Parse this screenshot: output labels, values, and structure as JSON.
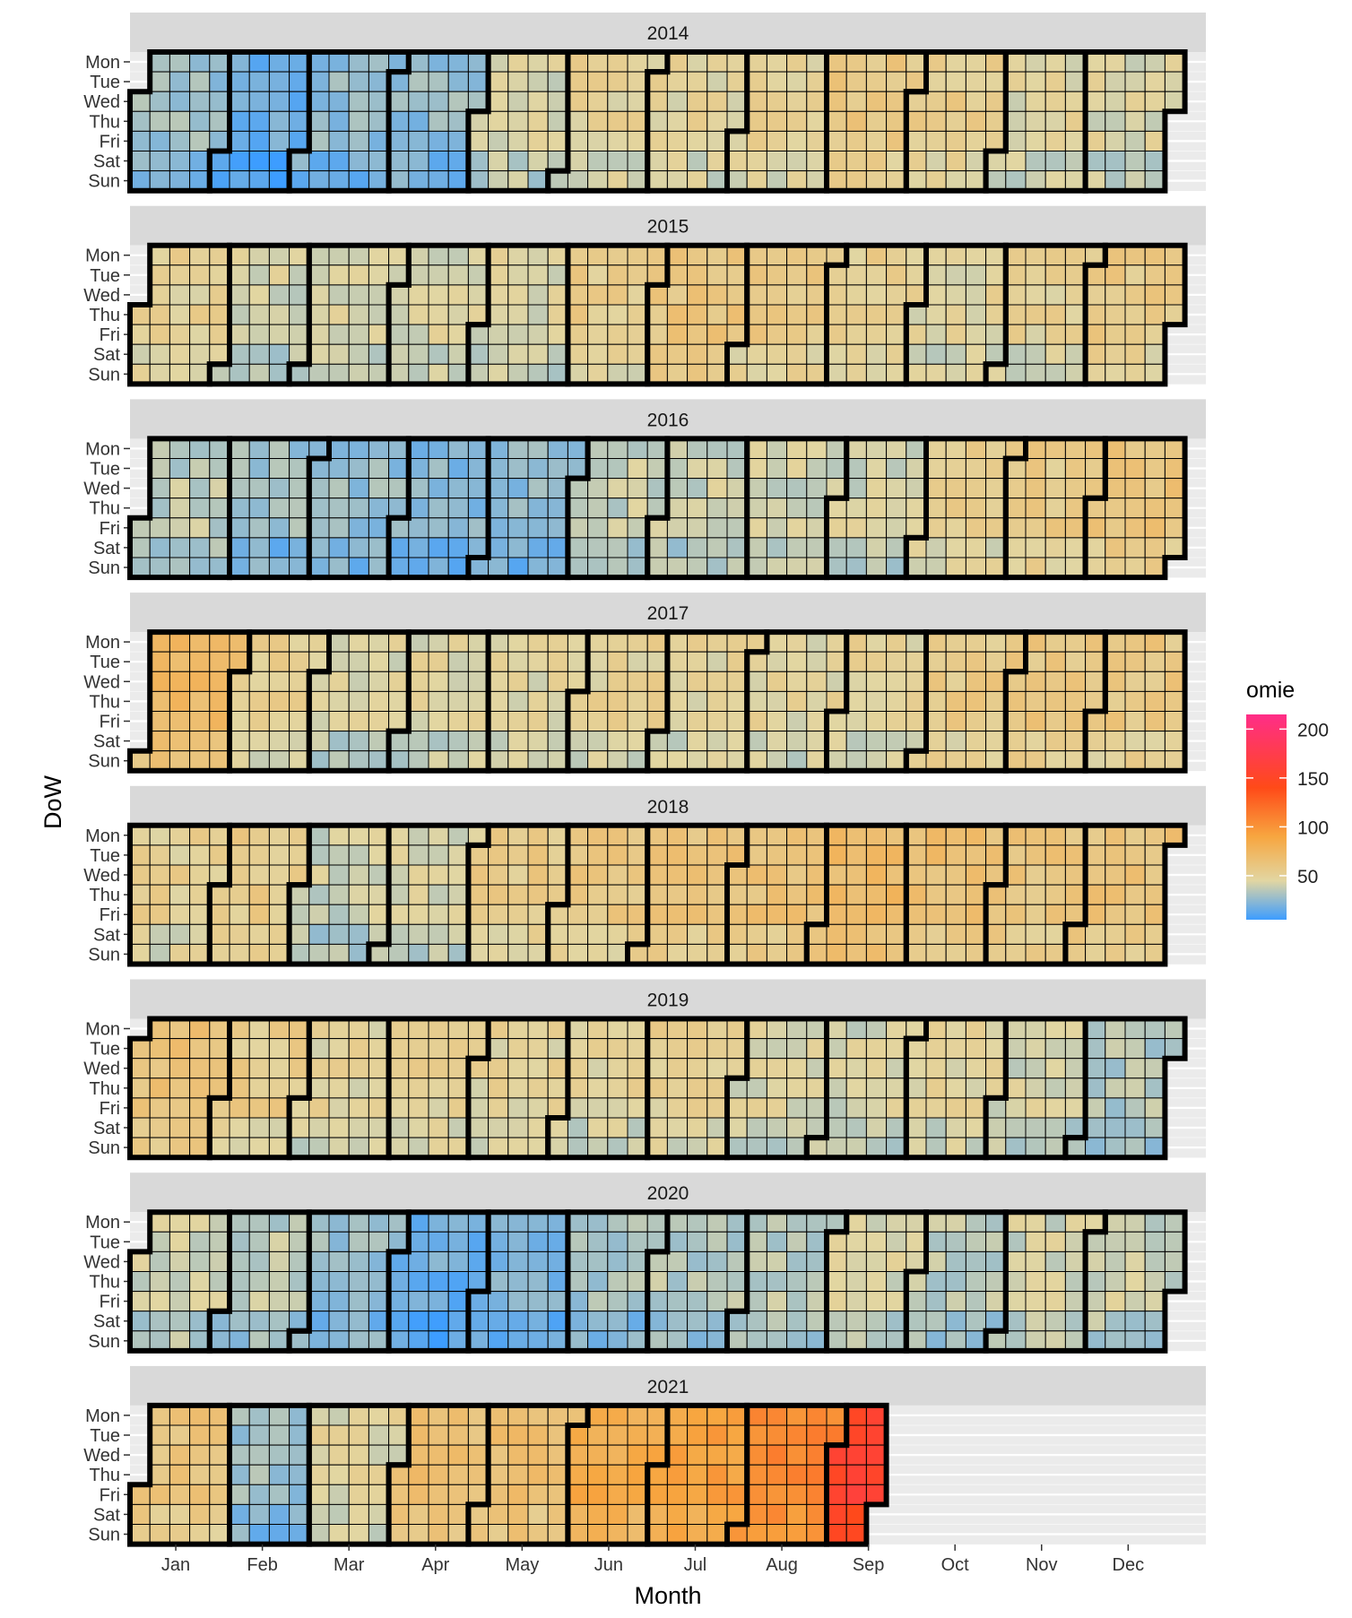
{
  "chart_data": {
    "type": "heatmap",
    "title": "",
    "xlabel": "Month",
    "ylabel": "DoW",
    "weekdays": [
      "Mon",
      "Tue",
      "Wed",
      "Thu",
      "Fri",
      "Sat",
      "Sun"
    ],
    "months": [
      "Jan",
      "Feb",
      "Mar",
      "Apr",
      "May",
      "Jun",
      "Jul",
      "Aug",
      "Sep",
      "Oct",
      "Nov",
      "Dec"
    ],
    "legend": {
      "title": "omie",
      "ticks": [
        50,
        100,
        150,
        200
      ],
      "range": [
        5,
        215
      ],
      "colors": [
        "#3d9dff",
        "#e2d6a2",
        "#f7a640",
        "#ff4a18",
        "#ff2d88"
      ],
      "stops": [
        5,
        45,
        90,
        140,
        215
      ],
      "placement": "right"
    },
    "end_date_2021": "2021-09-17",
    "monthly_means": {
      "2014": [
        28,
        17,
        26,
        26,
        42,
        50,
        48,
        50,
        58,
        54,
        46,
        45
      ],
      "2015": [
        50,
        42,
        43,
        44,
        45,
        54,
        60,
        56,
        52,
        47,
        50,
        56
      ],
      "2016": [
        36,
        27,
        27,
        23,
        25,
        38,
        40,
        41,
        42,
        52,
        56,
        61
      ],
      "2017": [
        71,
        51,
        43,
        45,
        47,
        50,
        48,
        47,
        48,
        56,
        59,
        58
      ],
      "2018": [
        51,
        55,
        40,
        42,
        55,
        58,
        62,
        64,
        71,
        66,
        61,
        62
      ],
      "2019": [
        62,
        54,
        48,
        50,
        48,
        47,
        51,
        45,
        42,
        47,
        42,
        34
      ],
      "2020": [
        41,
        36,
        28,
        17,
        21,
        30,
        35,
        36,
        42,
        36,
        41,
        40
      ],
      "2021": [
        61,
        28,
        46,
        65,
        67,
        84,
        92,
        106,
        156
      ]
    },
    "years": [
      {
        "label": "2014"
      },
      {
        "label": "2015"
      },
      {
        "label": "2016"
      },
      {
        "label": "2017"
      },
      {
        "label": "2018"
      },
      {
        "label": "2019"
      },
      {
        "label": "2020"
      },
      {
        "label": "2021"
      }
    ]
  }
}
